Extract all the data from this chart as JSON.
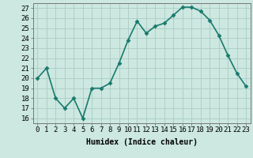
{
  "x": [
    0,
    1,
    2,
    3,
    4,
    5,
    6,
    7,
    8,
    9,
    10,
    11,
    12,
    13,
    14,
    15,
    16,
    17,
    18,
    19,
    20,
    21,
    22,
    23
  ],
  "y": [
    20,
    21,
    18,
    17,
    18,
    16,
    19,
    19,
    19.5,
    21.5,
    23.8,
    25.7,
    24.5,
    25.2,
    25.5,
    26.3,
    27.1,
    27.1,
    26.7,
    25.8,
    24.3,
    22.3,
    20.5,
    19.2
  ],
  "line_color": "#1a7a6e",
  "marker": "D",
  "marker_size": 2.5,
  "bg_color": "#cce8e0",
  "grid_color": "#aaccC4",
  "xlabel": "Humidex (Indice chaleur)",
  "xlim": [
    -0.5,
    23.5
  ],
  "ylim": [
    15.5,
    27.5
  ],
  "yticks": [
    16,
    17,
    18,
    19,
    20,
    21,
    22,
    23,
    24,
    25,
    26,
    27
  ],
  "xtick_labels": [
    "0",
    "1",
    "2",
    "3",
    "4",
    "5",
    "6",
    "7",
    "8",
    "9",
    "10",
    "11",
    "12",
    "13",
    "14",
    "15",
    "16",
    "17",
    "18",
    "19",
    "20",
    "21",
    "22",
    "23"
  ],
  "xlabel_fontsize": 7,
  "tick_fontsize": 6.5,
  "line_width": 1.2
}
